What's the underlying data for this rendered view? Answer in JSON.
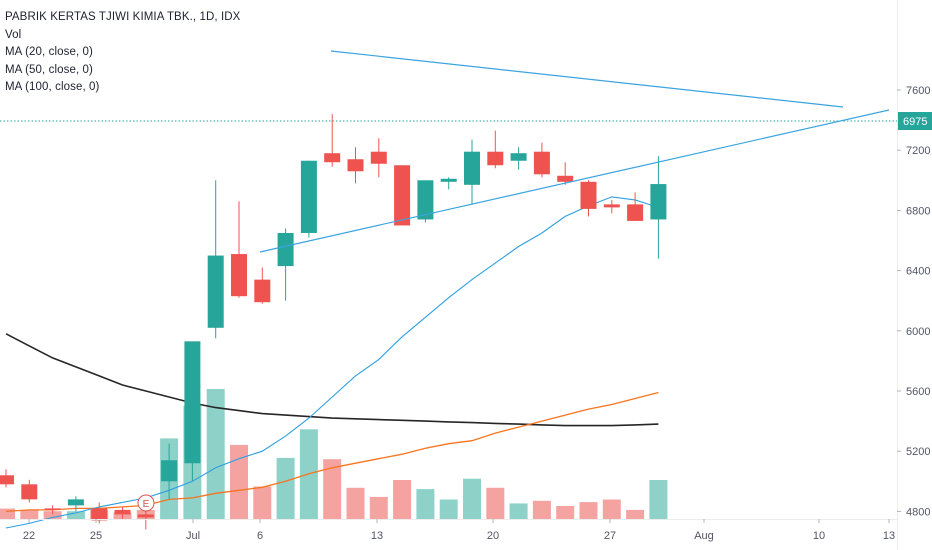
{
  "header": {
    "symbol_line": "PABRIK KERTAS TJIWI KIMIA TBK., 1D, IDX",
    "studies": [
      "Vol",
      "MA (20, close, 0)",
      "MA (50, close, 0)",
      "MA (100, close, 0)"
    ]
  },
  "colors": {
    "up": "#26a69a",
    "down": "#ef5350",
    "vol_up": "#8ed1c9",
    "vol_down": "#f5a3a1",
    "ma20": "#2f9fe0",
    "ma50": "#f7741f",
    "ma100": "#262626",
    "trendline": "#3ba4df",
    "last_price_tag": "#26a69a",
    "event": "#d9534f"
  },
  "last_price_label": "6975",
  "event_marker": "E",
  "chart_data": {
    "type": "candlestick",
    "x_ticks": [
      "22",
      "25",
      "Jul",
      "6",
      "13",
      "20",
      "27",
      "Aug",
      "10",
      "13"
    ],
    "y_ticks": [
      "4800",
      "5200",
      "5600",
      "6000",
      "6400",
      "6800",
      "7200",
      "7600"
    ],
    "candles": [
      {
        "o": 5040,
        "h": 5080,
        "l": 4960,
        "c": 4980
      },
      {
        "o": 4980,
        "h": 5010,
        "l": 4860,
        "c": 4880
      },
      {
        "o": 4820,
        "h": 4840,
        "l": 4780,
        "c": 4810
      },
      {
        "o": 4840,
        "h": 4900,
        "l": 4800,
        "c": 4880
      },
      {
        "o": 4820,
        "h": 4860,
        "l": 4720,
        "c": 4740
      },
      {
        "o": 4810,
        "h": 4830,
        "l": 4750,
        "c": 4780
      },
      {
        "o": 4780,
        "h": 4800,
        "l": 4680,
        "c": 4760
      },
      {
        "o": 5000,
        "h": 5250,
        "l": 4880,
        "c": 5140
      },
      {
        "o": 5120,
        "h": 5930,
        "l": 5000,
        "c": 5930
      },
      {
        "o": 6020,
        "h": 7000,
        "l": 5950,
        "c": 6500
      },
      {
        "o": 6510,
        "h": 6860,
        "l": 6220,
        "c": 6230
      },
      {
        "o": 6340,
        "h": 6420,
        "l": 6180,
        "c": 6190
      },
      {
        "o": 6430,
        "h": 6680,
        "l": 6200,
        "c": 6650
      },
      {
        "o": 6650,
        "h": 7130,
        "l": 6620,
        "c": 7130
      },
      {
        "o": 7180,
        "h": 7440,
        "l": 7090,
        "c": 7120
      },
      {
        "o": 7140,
        "h": 7220,
        "l": 6980,
        "c": 7060
      },
      {
        "o": 7190,
        "h": 7280,
        "l": 7020,
        "c": 7110
      },
      {
        "o": 7100,
        "h": 7100,
        "l": 6700,
        "c": 6700
      },
      {
        "o": 6740,
        "h": 7000,
        "l": 6720,
        "c": 7000
      },
      {
        "o": 6990,
        "h": 7020,
        "l": 6940,
        "c": 7010
      },
      {
        "o": 6970,
        "h": 7270,
        "l": 6840,
        "c": 7190
      },
      {
        "o": 7190,
        "h": 7330,
        "l": 7080,
        "c": 7100
      },
      {
        "o": 7130,
        "h": 7220,
        "l": 7070,
        "c": 7180
      },
      {
        "o": 7190,
        "h": 7250,
        "l": 7020,
        "c": 7040
      },
      {
        "o": 7030,
        "h": 7120,
        "l": 6970,
        "c": 6990
      },
      {
        "o": 6990,
        "h": 7000,
        "l": 6760,
        "c": 6810
      },
      {
        "o": 6840,
        "h": 6870,
        "l": 6780,
        "c": 6820
      },
      {
        "o": 6840,
        "h": 6920,
        "l": 6730,
        "c": 6730
      },
      {
        "o": 6740,
        "h": 7160,
        "l": 6480,
        "c": 6975
      }
    ],
    "volume_relative": [
      0.08,
      0.07,
      0.06,
      0.06,
      0.07,
      0.05,
      0.07,
      0.62,
      0.87,
      1.0,
      0.57,
      0.25,
      0.47,
      0.69,
      0.46,
      0.24,
      0.17,
      0.3,
      0.23,
      0.15,
      0.31,
      0.24,
      0.12,
      0.14,
      0.1,
      0.13,
      0.15,
      0.07,
      0.3
    ],
    "ma20": [
      4690,
      4720,
      4760,
      4790,
      4830,
      4860,
      4890,
      4940,
      5000,
      5090,
      5150,
      5200,
      5300,
      5420,
      5560,
      5700,
      5810,
      5960,
      6090,
      6220,
      6340,
      6450,
      6560,
      6650,
      6760,
      6830,
      6890,
      6870,
      6820
    ],
    "ma50": [
      4800,
      4810,
      4810,
      4820,
      4820,
      4830,
      4840,
      4880,
      4890,
      4920,
      4940,
      4960,
      5000,
      5050,
      5090,
      5120,
      5150,
      5180,
      5220,
      5250,
      5270,
      5320,
      5360,
      5400,
      5440,
      5480,
      5510,
      5550,
      5590
    ],
    "ma100": [
      5980,
      5900,
      5820,
      5760,
      5700,
      5640,
      5600,
      5560,
      5520,
      5490,
      5470,
      5450,
      5440,
      5430,
      5420,
      5415,
      5410,
      5405,
      5400,
      5395,
      5390,
      5385,
      5380,
      5375,
      5370,
      5370,
      5370,
      5375,
      5380
    ]
  }
}
